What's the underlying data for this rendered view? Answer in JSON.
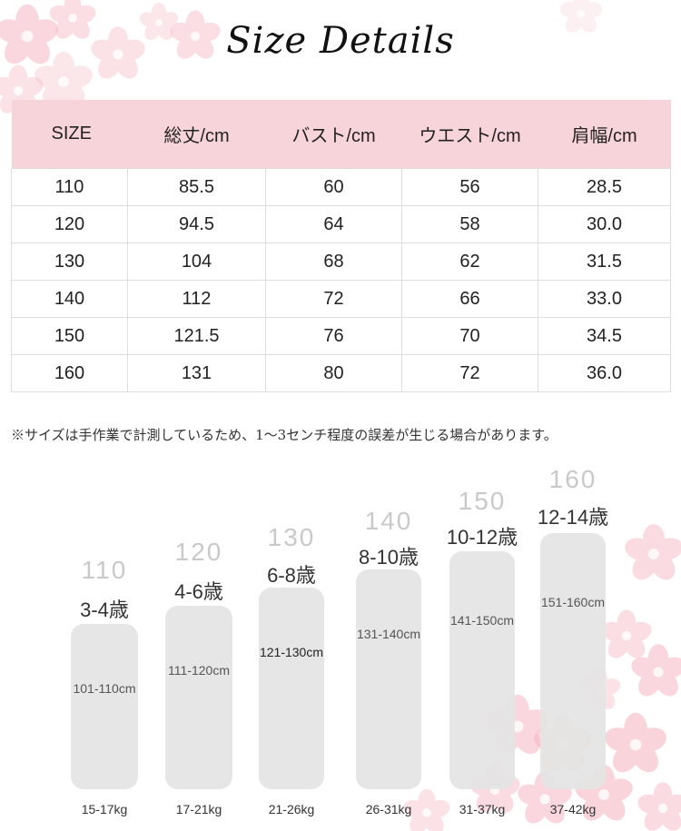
{
  "title": "Size Details",
  "table": {
    "headers": [
      "SIZE",
      "総丈/cm",
      "バスト/cm",
      "ウエスト/cm",
      "肩幅/cm"
    ],
    "rows": [
      [
        "110",
        "85.5",
        "60",
        "56",
        "28.5"
      ],
      [
        "120",
        "94.5",
        "64",
        "58",
        "30.0"
      ],
      [
        "130",
        "104",
        "68",
        "62",
        "31.5"
      ],
      [
        "140",
        "112",
        "72",
        "66",
        "33.0"
      ],
      [
        "150",
        "121.5",
        "76",
        "70",
        "34.5"
      ],
      [
        "160",
        "131",
        "80",
        "72",
        "36.0"
      ]
    ]
  },
  "note": "※サイズは手作業で計測しているため、1～3センチ程度の誤差が生じる場合があります。",
  "size_guide": [
    {
      "size": "110",
      "age": "3-4歳",
      "height": "101-110cm",
      "weight": "15-17kg"
    },
    {
      "size": "120",
      "age": "4-6歳",
      "height": "111-120cm",
      "weight": "17-21kg"
    },
    {
      "size": "130",
      "age": "6-8歳",
      "height": "121-130cm",
      "weight": "21-26kg"
    },
    {
      "size": "140",
      "age": "8-10歳",
      "height": "131-140cm",
      "weight": "26-31kg"
    },
    {
      "size": "150",
      "age": "10-12歳",
      "height": "141-150cm",
      "weight": "31-37kg"
    },
    {
      "size": "160",
      "age": "12-14歳",
      "height": "151-160cm",
      "weight": "37-42kg"
    }
  ],
  "colors": {
    "header_bg": "#f7d4d9",
    "petal": "#f6b8c4",
    "bar": "#e4e4e4"
  }
}
